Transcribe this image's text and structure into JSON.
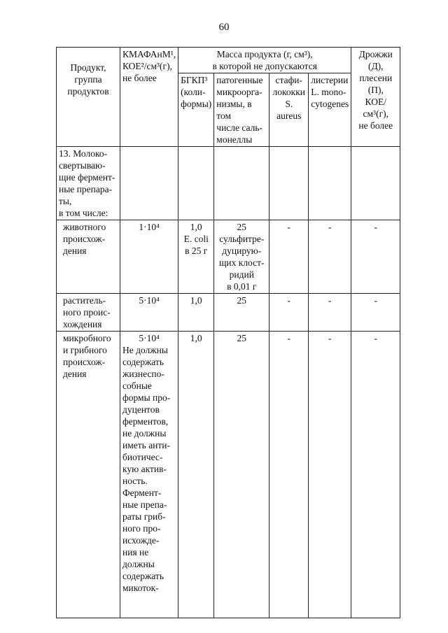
{
  "page_number": "60",
  "table": {
    "headers": {
      "product": "Продукт,\nгруппа\nпродуктов",
      "kmafanm": "КМАФАнМ¹,\nКОЕ²/см³(г),\nне более",
      "mass_group": "Масса продукта (г, см³),\nв которой не допускаются",
      "bgkp": "БГКП³\n(коли-\nформы)",
      "pathogens": "патогенные\nмикроорга-\nнизмы, в том\nчисле саль-\nмонеллы",
      "staph": "стафи-\nлококки\nS. aureus",
      "listeria": "листерии\nL. mono-\ncytogenes",
      "yeast_mold": "Дрожжи\n(Д),\nплесени\n(П),\nКОЕ/см³(г),\nне более"
    },
    "rows": [
      {
        "product": "13. Молоко-\nсвертываю-\nщие фермент-\nные препара-\nты,\nв том числе:",
        "kmafanm": "",
        "bgkp": "",
        "pathogens": "",
        "staph": "",
        "listeria": "",
        "yeast_mold": ""
      },
      {
        "product": "животного\nпроисхож-\nдения",
        "kmafanm": "1·10⁴",
        "bgkp": "1,0\nE. coli\nв 25 г",
        "pathogens": "25\nсульфитре-\nдуцирую-\nщих клост-\nридий\nв 0,01 г",
        "staph": "-",
        "listeria": "-",
        "yeast_mold": "-"
      },
      {
        "product": "раститель-\nного проис-\nхождения",
        "kmafanm": "5·10⁴",
        "bgkp": "1,0",
        "pathogens": "25",
        "staph": "-",
        "listeria": "-",
        "yeast_mold": "-"
      },
      {
        "product": "микробного\nи грибного\nпроисхож-\nдения",
        "kmafanm_value": "5·10⁴",
        "kmafanm_note": "Не должны\nсодержать\nжизнеспо-\nсобные\nформы про-\nдуцентов\nферментов,\nне должны\nиметь анти-\nбиотичес-\nкую актив-\nность.\nФермент-\nные препа-\nраты гриб-\nного про-\nисхожде-\nния не\nдолжны\nсодержать\nмикоток-",
        "bgkp": "1,0",
        "pathogens": "25",
        "staph": "-",
        "listeria": "-",
        "yeast_mold": "-"
      }
    ]
  }
}
